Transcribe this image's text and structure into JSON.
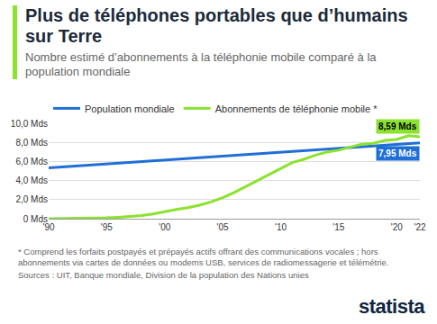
{
  "title": "Plus de téléphones portables que d’humains sur Terre",
  "subtitle": "Nombre estimé d’abonnements à la téléphonie mobile comparé à la population mondiale",
  "note": "* Comprend les forfaits postpayés et prépayés actifs offrant des communications vocales ; hors abonnements via cartes de données ou modems USB, services de radiomessagerie et télémétrie.",
  "source": "Sources : UIT, Banque mondiale, Division de la population des Nations unies",
  "logo": "statista",
  "chart_data": {
    "type": "line",
    "x": [
      1990,
      1991,
      1992,
      1993,
      1994,
      1995,
      1996,
      1997,
      1998,
      1999,
      2000,
      2001,
      2002,
      2003,
      2004,
      2005,
      2006,
      2007,
      2008,
      2009,
      2010,
      2011,
      2012,
      2013,
      2014,
      2015,
      2016,
      2017,
      2018,
      2019,
      2020,
      2021,
      2022
    ],
    "series": [
      {
        "name": "Population mondiale",
        "color": "#1f6fd6",
        "values": [
          5.33,
          5.41,
          5.5,
          5.58,
          5.66,
          5.74,
          5.82,
          5.9,
          5.98,
          6.06,
          6.14,
          6.22,
          6.3,
          6.38,
          6.46,
          6.54,
          6.62,
          6.71,
          6.79,
          6.87,
          6.96,
          7.04,
          7.13,
          7.21,
          7.3,
          7.38,
          7.46,
          7.55,
          7.63,
          7.71,
          7.79,
          7.87,
          7.95
        ]
      },
      {
        "name": "Abonnements de téléphonie mobile *",
        "color": "#8be22f",
        "values": [
          0.01,
          0.02,
          0.02,
          0.03,
          0.06,
          0.09,
          0.15,
          0.22,
          0.32,
          0.49,
          0.74,
          0.96,
          1.16,
          1.42,
          1.76,
          2.21,
          2.75,
          3.37,
          4.03,
          4.64,
          5.29,
          5.89,
          6.23,
          6.66,
          6.99,
          7.18,
          7.51,
          7.8,
          7.9,
          8.2,
          8.3,
          8.7,
          8.59
        ]
      }
    ],
    "xlim": [
      1990,
      2022
    ],
    "xticks": [
      {
        "value": 1990,
        "label": "'90"
      },
      {
        "value": 1995,
        "label": "'95"
      },
      {
        "value": 2000,
        "label": "'00"
      },
      {
        "value": 2005,
        "label": "'05"
      },
      {
        "value": 2010,
        "label": "'10"
      },
      {
        "value": 2015,
        "label": "'15"
      },
      {
        "value": 2020,
        "label": "'20"
      },
      {
        "value": 2022,
        "label": "'22"
      }
    ],
    "ylim": [
      0,
      10
    ],
    "yticks": [
      {
        "value": 0,
        "label": "0 Mds"
      },
      {
        "value": 2,
        "label": "2,0 Mds"
      },
      {
        "value": 4,
        "label": "4,0 Mds"
      },
      {
        "value": 6,
        "label": "6,0 Mds"
      },
      {
        "value": 8,
        "label": "8,0 Mds"
      },
      {
        "value": 10,
        "label": "10,0 Mds"
      }
    ],
    "grid": true,
    "legend": "top-left",
    "annotations": [
      {
        "text": "8,59 Mds",
        "x": 2022,
        "y": 8.59,
        "color": "#8be22f"
      },
      {
        "text": "7,95 Mds",
        "x": 2022,
        "y": 7.95,
        "color": "#1f6fd6"
      }
    ]
  }
}
